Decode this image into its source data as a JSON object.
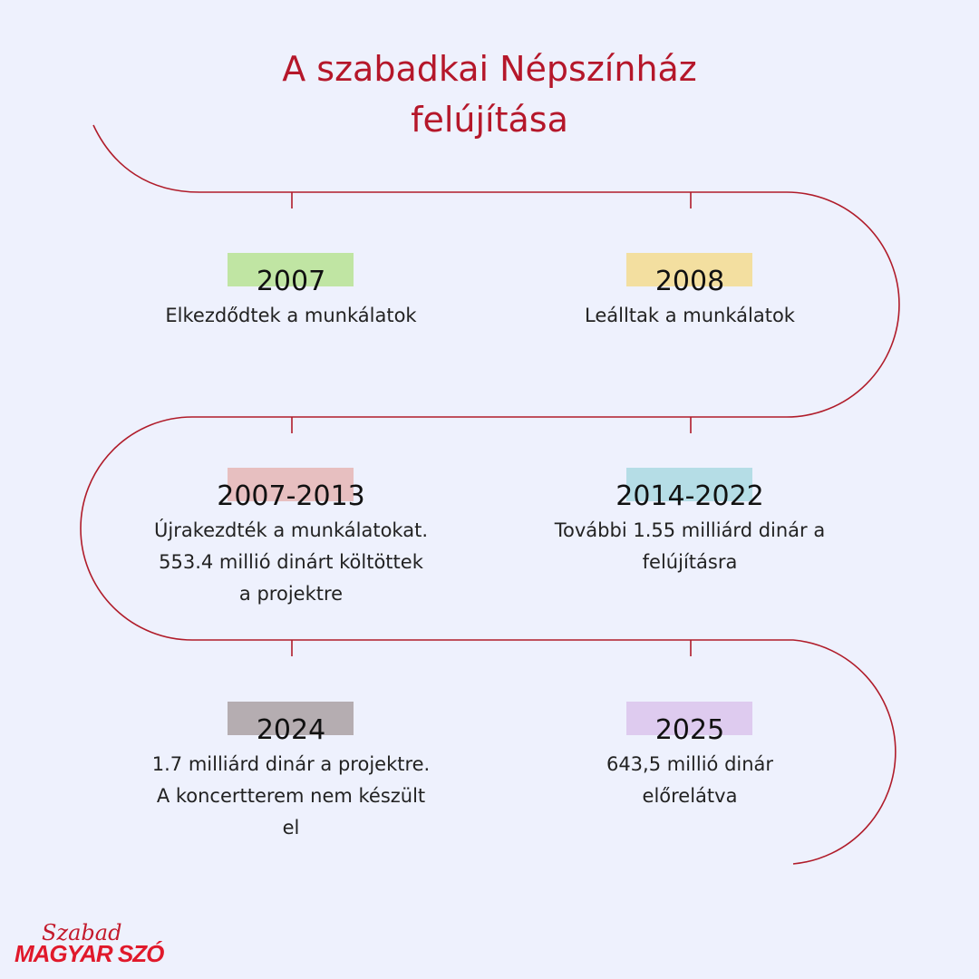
{
  "title_line1": "A szabadkai Népszínház",
  "title_line2": "felújítása",
  "colors": {
    "line": "#b01c2a",
    "background": "#eef1fd"
  },
  "events": [
    {
      "year": "2007",
      "desc": [
        "Elkezdődtek a munkálatok"
      ],
      "tag_color": "#c0e5a3"
    },
    {
      "year": "2008",
      "desc": [
        "Leálltak a munkálatok"
      ],
      "tag_color": "#f3dfa0"
    },
    {
      "year": "2007-2013",
      "desc": [
        "Újrakezdték a munkálatokat.",
        "553.4 millió dinárt költöttek",
        "a projektre"
      ],
      "tag_color": "#e7bfc0"
    },
    {
      "year": "2014-2022",
      "desc": [
        "További 1.55 milliárd dinár a",
        "felújításra"
      ],
      "tag_color": "#b5dde6"
    },
    {
      "year": "2024",
      "desc": [
        "1.7 milliárd dinár a projektre.",
        "A koncertterem nem készült",
        "el"
      ],
      "tag_color": "#b5adb1"
    },
    {
      "year": "2025",
      "desc": [
        "643,5 millió dinár",
        "előrelátva"
      ],
      "tag_color": "#decbef"
    }
  ],
  "logo": {
    "script": "Szabad",
    "main": "MAGYAR SZÓ"
  }
}
